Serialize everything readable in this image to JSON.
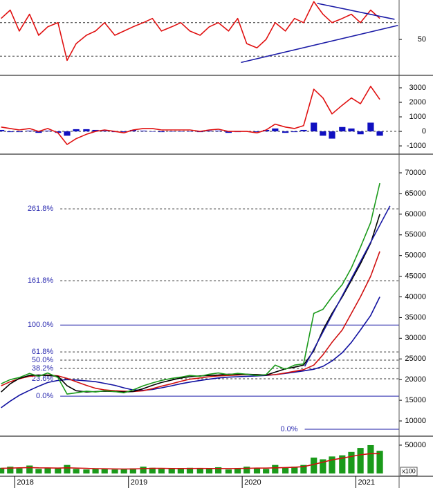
{
  "chart_data": [
    {
      "type": "line",
      "x": [
        2017.88,
        2017.96,
        2018.04,
        2018.13,
        2018.21,
        2018.29,
        2018.38,
        2018.46,
        2018.54,
        2018.63,
        2018.71,
        2018.79,
        2018.88,
        2018.96,
        2019.04,
        2019.13,
        2019.21,
        2019.29,
        2019.38,
        2019.46,
        2019.54,
        2019.63,
        2019.71,
        2019.79,
        2019.88,
        2019.96,
        2020.04,
        2020.13,
        2020.21,
        2020.29,
        2020.38,
        2020.46,
        2020.54,
        2020.63,
        2020.71,
        2020.79,
        2020.88,
        2020.96,
        2021.04,
        2021.13,
        2021.21
      ],
      "xlim": [
        2017.87,
        2021.38
      ],
      "xticks": [
        2018,
        2019,
        2020,
        2021
      ],
      "ylim": [
        8,
        97
      ],
      "yticks": [
        50
      ],
      "reference_lines": [
        30,
        70
      ],
      "series": [
        {
          "kind": "line",
          "color": "#e01010",
          "values": [
            75,
            85,
            60,
            80,
            55,
            65,
            70,
            25,
            45,
            55,
            60,
            70,
            55,
            60,
            65,
            70,
            75,
            60,
            65,
            70,
            60,
            55,
            65,
            70,
            60,
            75,
            45,
            40,
            50,
            70,
            60,
            75,
            70,
            95,
            80,
            70,
            75,
            80,
            70,
            85,
            75
          ]
        }
      ],
      "trendlines": [
        {
          "color": "#1a1aa6",
          "x": [
            2020.66,
            2021.34
          ],
          "y": [
            93,
            74
          ]
        },
        {
          "color": "#1a1aa6",
          "x": [
            2019.99,
            2021.37
          ],
          "y": [
            22.5,
            66.7
          ]
        }
      ]
    },
    {
      "type": "combo",
      "x": [
        2017.88,
        2017.96,
        2018.04,
        2018.13,
        2018.21,
        2018.29,
        2018.38,
        2018.46,
        2018.54,
        2018.63,
        2018.71,
        2018.79,
        2018.88,
        2018.96,
        2019.04,
        2019.13,
        2019.21,
        2019.29,
        2019.38,
        2019.46,
        2019.54,
        2019.63,
        2019.71,
        2019.79,
        2019.88,
        2019.96,
        2020.04,
        2020.13,
        2020.21,
        2020.29,
        2020.38,
        2020.46,
        2020.54,
        2020.63,
        2020.71,
        2020.79,
        2020.88,
        2020.96,
        2021.04,
        2021.13,
        2021.21
      ],
      "xlim": [
        2017.87,
        2021.38
      ],
      "xticks": [
        2018,
        2019,
        2020,
        2021
      ],
      "ylim": [
        -1520,
        3810
      ],
      "yticks": [
        -1000,
        0,
        1000,
        2000,
        3000
      ],
      "reference_lines": [
        0
      ],
      "series": [
        {
          "kind": "bar",
          "color": "#1010c0",
          "values": [
            100,
            -50,
            -50,
            50,
            -100,
            50,
            -100,
            -300,
            150,
            150,
            100,
            50,
            -50,
            -50,
            100,
            50,
            0,
            -50,
            0,
            0,
            0,
            -50,
            50,
            50,
            -100,
            -50,
            0,
            -50,
            100,
            200,
            -100,
            -50,
            100,
            600,
            -300,
            -500,
            300,
            200,
            -200,
            600,
            -300
          ]
        },
        {
          "kind": "line",
          "color": "#e01010",
          "values": [
            300,
            200,
            100,
            200,
            0,
            200,
            -100,
            -900,
            -500,
            -200,
            0,
            100,
            0,
            -100,
            100,
            200,
            200,
            100,
            100,
            100,
            100,
            0,
            100,
            150,
            0,
            0,
            0,
            -100,
            100,
            500,
            300,
            200,
            400,
            2900,
            2300,
            1200,
            1800,
            2300,
            1900,
            3100,
            2200
          ]
        }
      ]
    },
    {
      "type": "line",
      "x": [
        2017.88,
        2017.96,
        2018.04,
        2018.13,
        2018.21,
        2018.29,
        2018.38,
        2018.46,
        2018.54,
        2018.63,
        2018.71,
        2018.79,
        2018.88,
        2018.96,
        2019.04,
        2019.13,
        2019.21,
        2019.29,
        2019.38,
        2019.46,
        2019.54,
        2019.63,
        2019.71,
        2019.79,
        2019.88,
        2019.96,
        2020.04,
        2020.13,
        2020.21,
        2020.29,
        2020.38,
        2020.46,
        2020.54,
        2020.63,
        2020.71,
        2020.79,
        2020.88,
        2020.96,
        2021.04,
        2021.13,
        2021.21
      ],
      "xlim": [
        2017.87,
        2021.38
      ],
      "xticks": [
        2018,
        2019,
        2020,
        2021
      ],
      "ylim": [
        6490,
        74350
      ],
      "yticks": [
        10000,
        15000,
        20000,
        25000,
        30000,
        35000,
        40000,
        45000,
        50000,
        55000,
        60000,
        65000,
        70000
      ],
      "series": [
        {
          "kind": "line",
          "color": "#1010a0",
          "values": [
            13200,
            14800,
            16200,
            17400,
            18400,
            19300,
            19800,
            20000,
            19900,
            19700,
            19500,
            19100,
            18600,
            18000,
            17500,
            17400,
            17600,
            18000,
            18500,
            19000,
            19400,
            19800,
            20100,
            20400,
            20600,
            20700,
            20800,
            20900,
            21000,
            21200,
            21500,
            21800,
            22100,
            22500,
            23200,
            24500,
            26500,
            29000,
            32000,
            35500,
            40000
          ]
        },
        {
          "kind": "line",
          "color": "#d01010",
          "values": [
            18500,
            19500,
            20200,
            20800,
            21000,
            21100,
            20900,
            20300,
            19500,
            18600,
            17900,
            17500,
            17300,
            17200,
            17100,
            17300,
            17800,
            18400,
            19000,
            19600,
            20100,
            20400,
            20700,
            20900,
            21000,
            21100,
            21200,
            21200,
            21100,
            21200,
            21600,
            22000,
            22400,
            23500,
            26000,
            29000,
            32000,
            36000,
            40000,
            45000,
            51000
          ]
        },
        {
          "kind": "line",
          "color": "#000000",
          "values": [
            17000,
            19000,
            20300,
            21000,
            21100,
            21000,
            20800,
            18500,
            17300,
            17000,
            17100,
            17200,
            17100,
            17000,
            17100,
            17800,
            18600,
            19300,
            19900,
            20400,
            20700,
            20900,
            21000,
            21100,
            21300,
            21300,
            21300,
            21200,
            21100,
            21800,
            22600,
            23000,
            23500,
            27000,
            32000,
            36000,
            40000,
            44000,
            48000,
            53000,
            60000
          ]
        },
        {
          "kind": "line",
          "color": "#1a9a1a",
          "values": [
            19000,
            20000,
            20500,
            21500,
            20800,
            21600,
            20500,
            16500,
            16800,
            17200,
            17000,
            17300,
            17100,
            16800,
            17500,
            18500,
            19200,
            19800,
            20300,
            20600,
            21000,
            20800,
            21300,
            21600,
            21200,
            21500,
            21300,
            21000,
            21200,
            23500,
            22500,
            23500,
            23800,
            36000,
            37000,
            40000,
            43000,
            47000,
            52000,
            58000,
            67500
          ]
        }
      ],
      "levels": [
        {
          "label": "261.8%",
          "value": 61300,
          "style": "dashed",
          "xstart": 2018.4
        },
        {
          "label": "161.8%",
          "value": 43900,
          "style": "dashed",
          "xstart": 2018.4
        },
        {
          "label": "100.0%",
          "value": 33200,
          "style": "solid",
          "xstart": 2018.4
        },
        {
          "label": "61.8%",
          "value": 26700,
          "style": "dashed",
          "xstart": 2018.4
        },
        {
          "label": "50.0%",
          "value": 24700,
          "style": "dashed",
          "xstart": 2018.4
        },
        {
          "label": "38.2%",
          "value": 22700,
          "style": "dashed",
          "xstart": 2018.4
        },
        {
          "label": "23.6%",
          "value": 20200,
          "style": "dashed",
          "xstart": 2018.4
        },
        {
          "label": "0.0%",
          "value": 16000,
          "style": "solid",
          "xstart": 2018.4
        },
        {
          "label": "0.0%",
          "value": 8000,
          "style": "solid",
          "xstart": 2020.55
        }
      ],
      "trendlines": [
        {
          "color": "#1a1aa6",
          "x": [
            2020.55,
            2021.3
          ],
          "y": [
            23200,
            62000
          ]
        }
      ]
    },
    {
      "type": "combo",
      "x": [
        2017.88,
        2017.96,
        2018.04,
        2018.13,
        2018.21,
        2018.29,
        2018.38,
        2018.46,
        2018.54,
        2018.63,
        2018.71,
        2018.79,
        2018.88,
        2018.96,
        2019.04,
        2019.13,
        2019.21,
        2019.29,
        2019.38,
        2019.46,
        2019.54,
        2019.63,
        2019.71,
        2019.79,
        2019.88,
        2019.96,
        2020.04,
        2020.13,
        2020.21,
        2020.29,
        2020.38,
        2020.46,
        2020.54,
        2020.63,
        2020.71,
        2020.79,
        2020.88,
        2020.96,
        2021.04,
        2021.13,
        2021.21
      ],
      "xlim": [
        2017.87,
        2021.38
      ],
      "xticks": [
        2018,
        2019,
        2020,
        2021
      ],
      "ylim": [
        -3700,
        64600
      ],
      "yticks": [
        50000
      ],
      "unit_label": "x100",
      "series": [
        {
          "kind": "bar",
          "color": "#1a9a1a",
          "values": [
            10000,
            12000,
            9000,
            14000,
            8000,
            10000,
            9000,
            15000,
            8000,
            7000,
            9000,
            8000,
            7000,
            8000,
            9000,
            12000,
            10000,
            8000,
            9000,
            8000,
            10000,
            9000,
            8000,
            11000,
            7000,
            9000,
            12000,
            10000,
            8000,
            15000,
            10000,
            12000,
            15000,
            28000,
            25000,
            30000,
            32000,
            38000,
            45000,
            50000,
            40000
          ]
        },
        {
          "kind": "line",
          "color": "#d01010",
          "values": [
            9000,
            9500,
            10000,
            10500,
            10000,
            9800,
            9500,
            10000,
            9500,
            9000,
            8500,
            8200,
            8000,
            7900,
            8000,
            8500,
            9000,
            9000,
            8800,
            8700,
            8800,
            8900,
            8700,
            8800,
            8600,
            8700,
            9000,
            9500,
            9500,
            10000,
            10500,
            11000,
            12000,
            16000,
            20000,
            24000,
            27000,
            30000,
            33000,
            35000,
            35000
          ]
        }
      ]
    }
  ]
}
